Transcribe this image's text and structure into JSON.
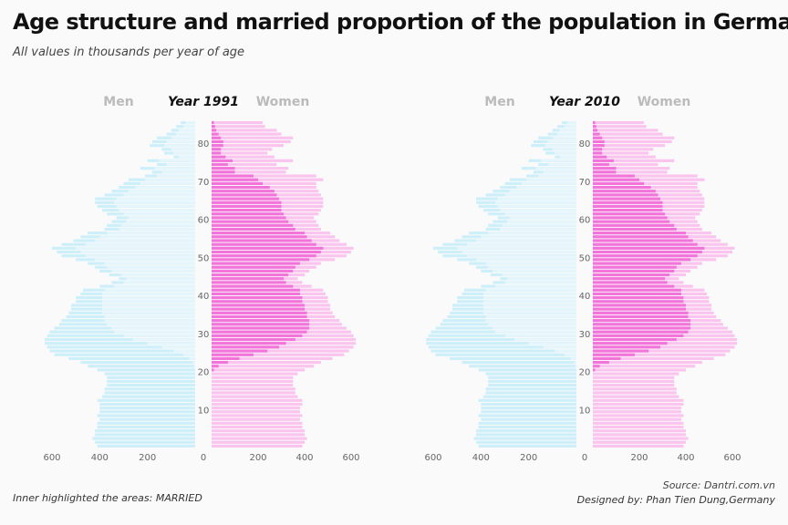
{
  "title": "Age structure and married proportion of the population in Germany",
  "subtitle": "All values in thousands per year of age",
  "note": "Inner highlighted the areas: MARRIED",
  "source": "Source: Dantri.com.vn",
  "designer": "Designed by: Phan Tien Dung,Germany",
  "colors": {
    "men_total": "#cdeffa",
    "men_married": "#e4f5fb",
    "women_total": "#fac4ee",
    "women_married": "#f273d9",
    "label_grey": "#bbbbbb"
  },
  "chart_data": {
    "type": "bar",
    "orientation": "horizontal",
    "age_range": [
      0,
      85
    ],
    "age_ticks": [
      10,
      20,
      30,
      40,
      50,
      60,
      70,
      80
    ],
    "men_axis": {
      "ticks": [
        600,
        400,
        200,
        0
      ],
      "max": 600
    },
    "women_axis": {
      "ticks": [
        0,
        200,
        400,
        600
      ],
      "max": 650
    },
    "side_labels": {
      "men": "Men",
      "women": "Women"
    },
    "panels": [
      {
        "title": "Year 1991",
        "age": [
          0,
          1,
          2,
          3,
          4,
          5,
          6,
          7,
          8,
          9,
          10,
          11,
          12,
          13,
          14,
          15,
          16,
          17,
          18,
          19,
          20,
          21,
          22,
          23,
          24,
          25,
          26,
          27,
          28,
          29,
          30,
          31,
          32,
          33,
          34,
          35,
          36,
          37,
          38,
          39,
          40,
          41,
          42,
          43,
          44,
          45,
          46,
          47,
          48,
          49,
          50,
          51,
          52,
          53,
          54,
          55,
          56,
          57,
          58,
          59,
          60,
          61,
          62,
          63,
          64,
          65,
          66,
          67,
          68,
          69,
          70,
          71,
          72,
          73,
          74,
          75,
          76,
          77,
          78,
          79,
          80,
          81,
          82,
          83,
          84,
          85
        ],
        "men_total": [
          410,
          420,
          430,
          420,
          420,
          410,
          410,
          400,
          410,
          400,
          400,
          400,
          410,
          390,
          380,
          380,
          370,
          370,
          370,
          380,
          410,
          450,
          480,
          530,
          590,
          610,
          620,
          630,
          630,
          620,
          610,
          590,
          570,
          560,
          540,
          530,
          520,
          520,
          500,
          500,
          480,
          470,
          400,
          350,
          320,
          360,
          400,
          420,
          450,
          500,
          560,
          580,
          600,
          560,
          510,
          480,
          450,
          380,
          370,
          350,
          330,
          370,
          390,
          410,
          420,
          420,
          380,
          350,
          320,
          300,
          280,
          210,
          180,
          230,
          160,
          200,
          90,
          130,
          140,
          190,
          180,
          160,
          120,
          100,
          80,
          60
        ],
        "men_married": [
          0,
          0,
          0,
          0,
          0,
          0,
          0,
          0,
          0,
          0,
          0,
          0,
          0,
          0,
          0,
          0,
          0,
          0,
          0,
          0,
          0,
          5,
          10,
          25,
          50,
          90,
          140,
          200,
          260,
          300,
          340,
          350,
          370,
          380,
          380,
          390,
          390,
          390,
          390,
          390,
          390,
          380,
          340,
          300,
          290,
          310,
          350,
          370,
          380,
          420,
          460,
          480,
          500,
          460,
          420,
          400,
          370,
          320,
          310,
          290,
          280,
          300,
          320,
          330,
          340,
          330,
          300,
          280,
          250,
          230,
          210,
          160,
          140,
          170,
          120,
          150,
          70,
          90,
          100,
          130,
          120,
          100,
          80,
          70,
          50,
          40
        ],
        "women_total": [
          390,
          400,
          410,
          400,
          400,
          390,
          390,
          380,
          390,
          380,
          380,
          390,
          390,
          370,
          360,
          360,
          350,
          350,
          350,
          370,
          400,
          440,
          470,
          520,
          570,
          590,
          610,
          620,
          620,
          610,
          600,
          580,
          560,
          550,
          530,
          520,
          510,
          510,
          500,
          500,
          490,
          480,
          430,
          390,
          370,
          400,
          420,
          450,
          470,
          530,
          580,
          600,
          610,
          580,
          550,
          530,
          510,
          470,
          460,
          450,
          440,
          460,
          470,
          480,
          480,
          480,
          470,
          460,
          450,
          450,
          480,
          450,
          320,
          330,
          280,
          350,
          270,
          240,
          260,
          310,
          340,
          350,
          300,
          280,
          230,
          220
        ],
        "women_married": [
          0,
          0,
          0,
          0,
          0,
          0,
          0,
          0,
          0,
          0,
          0,
          0,
          0,
          0,
          0,
          0,
          0,
          0,
          0,
          0,
          10,
          30,
          70,
          120,
          180,
          240,
          290,
          320,
          360,
          390,
          410,
          420,
          420,
          420,
          410,
          410,
          400,
          400,
          390,
          390,
          380,
          380,
          350,
          320,
          310,
          330,
          350,
          360,
          380,
          420,
          450,
          470,
          480,
          450,
          430,
          410,
          400,
          360,
          350,
          330,
          320,
          310,
          300,
          300,
          300,
          290,
          280,
          270,
          250,
          220,
          200,
          180,
          100,
          100,
          70,
          90,
          60,
          40,
          40,
          50,
          50,
          40,
          30,
          20,
          15,
          10
        ]
      },
      {
        "title": "Year 2010",
        "age": [
          0,
          1,
          2,
          3,
          4,
          5,
          6,
          7,
          8,
          9,
          10,
          11,
          12,
          13,
          14,
          15,
          16,
          17,
          18,
          19,
          20,
          21,
          22,
          23,
          24,
          25,
          26,
          27,
          28,
          29,
          30,
          31,
          32,
          33,
          34,
          35,
          36,
          37,
          38,
          39,
          40,
          41,
          42,
          43,
          44,
          45,
          46,
          47,
          48,
          49,
          50,
          51,
          52,
          53,
          54,
          55,
          56,
          57,
          58,
          59,
          60,
          61,
          62,
          63,
          64,
          65,
          66,
          67,
          68,
          69,
          70,
          71,
          72,
          73,
          74,
          75,
          76,
          77,
          78,
          79,
          80,
          81,
          82,
          83,
          84,
          85
        ],
        "men_total": [
          410,
          420,
          430,
          420,
          420,
          410,
          410,
          400,
          410,
          400,
          400,
          400,
          410,
          390,
          380,
          380,
          370,
          370,
          370,
          380,
          410,
          450,
          480,
          530,
          590,
          610,
          620,
          630,
          630,
          620,
          610,
          590,
          570,
          560,
          540,
          530,
          520,
          520,
          500,
          500,
          480,
          470,
          400,
          350,
          320,
          360,
          400,
          420,
          450,
          500,
          560,
          580,
          600,
          560,
          510,
          480,
          450,
          380,
          370,
          350,
          330,
          370,
          390,
          410,
          420,
          420,
          380,
          350,
          320,
          300,
          280,
          210,
          180,
          230,
          160,
          200,
          90,
          130,
          140,
          190,
          180,
          160,
          120,
          100,
          80,
          60
        ],
        "men_married": [
          0,
          0,
          0,
          0,
          0,
          0,
          0,
          0,
          0,
          0,
          0,
          0,
          0,
          0,
          0,
          0,
          0,
          0,
          0,
          0,
          0,
          5,
          10,
          25,
          50,
          90,
          140,
          200,
          260,
          300,
          340,
          350,
          370,
          380,
          380,
          390,
          390,
          390,
          390,
          390,
          390,
          380,
          340,
          300,
          290,
          310,
          350,
          370,
          380,
          420,
          460,
          480,
          500,
          460,
          420,
          400,
          370,
          320,
          310,
          290,
          280,
          300,
          320,
          330,
          340,
          330,
          300,
          280,
          250,
          230,
          210,
          160,
          140,
          170,
          120,
          150,
          70,
          90,
          100,
          130,
          120,
          100,
          80,
          70,
          50,
          40
        ],
        "women_total": [
          390,
          400,
          410,
          400,
          400,
          390,
          390,
          380,
          390,
          380,
          380,
          390,
          390,
          370,
          360,
          360,
          350,
          350,
          350,
          370,
          400,
          440,
          470,
          520,
          570,
          590,
          610,
          620,
          620,
          610,
          600,
          580,
          560,
          550,
          530,
          520,
          510,
          510,
          500,
          500,
          490,
          480,
          430,
          390,
          370,
          400,
          420,
          450,
          470,
          530,
          580,
          600,
          610,
          580,
          550,
          530,
          510,
          470,
          460,
          450,
          440,
          460,
          470,
          480,
          480,
          480,
          470,
          460,
          450,
          450,
          480,
          450,
          320,
          330,
          280,
          350,
          270,
          240,
          260,
          310,
          340,
          350,
          300,
          280,
          230,
          220
        ],
        "women_married": [
          0,
          0,
          0,
          0,
          0,
          0,
          0,
          0,
          0,
          0,
          0,
          0,
          0,
          0,
          0,
          0,
          0,
          0,
          0,
          0,
          10,
          30,
          70,
          120,
          180,
          240,
          290,
          320,
          360,
          390,
          410,
          420,
          420,
          420,
          410,
          410,
          400,
          400,
          390,
          390,
          380,
          380,
          350,
          320,
          310,
          330,
          350,
          360,
          380,
          420,
          450,
          470,
          480,
          450,
          430,
          410,
          400,
          360,
          350,
          330,
          320,
          310,
          300,
          300,
          300,
          290,
          280,
          270,
          250,
          220,
          200,
          180,
          100,
          100,
          70,
          90,
          60,
          40,
          40,
          50,
          50,
          40,
          30,
          20,
          15,
          10
        ]
      }
    ]
  }
}
